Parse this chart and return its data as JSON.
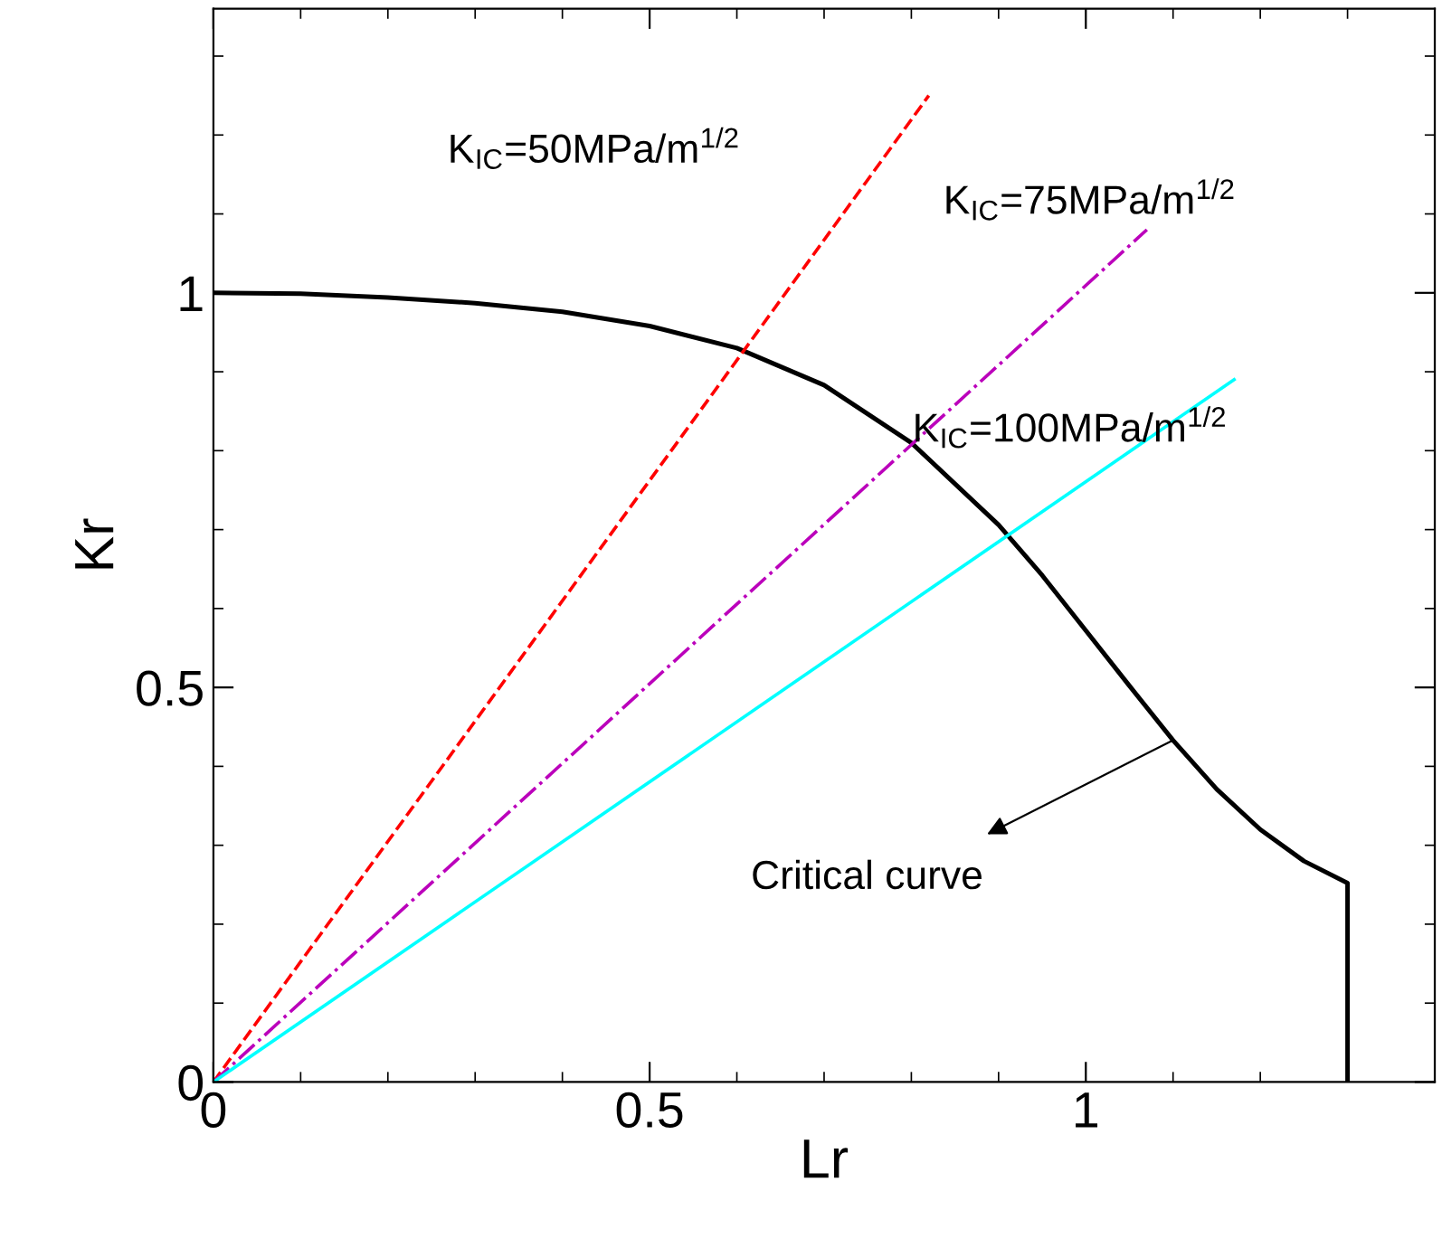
{
  "chart_data": {
    "type": "line",
    "xlabel": "Lr",
    "ylabel": "Kr",
    "xlim": [
      0,
      1.4
    ],
    "ylim": [
      0,
      1.36
    ],
    "xticks": [
      0,
      0.5,
      1
    ],
    "yticks": [
      0,
      0.5,
      1
    ],
    "grid": false,
    "legend": false,
    "marker": "none",
    "series": [
      {
        "color": "#000000",
        "line_style": "solid",
        "x": [
          0,
          0.1,
          0.2,
          0.3,
          0.4,
          0.5,
          0.6,
          0.7,
          0.8,
          0.9,
          0.95,
          1.0,
          1.05,
          1.1,
          1.15,
          1.2,
          1.25,
          1.3,
          1.3
        ],
        "values": [
          1.0,
          0.999,
          0.994,
          0.987,
          0.976,
          0.958,
          0.93,
          0.883,
          0.81,
          0.706,
          0.642,
          0.572,
          0.502,
          0.433,
          0.371,
          0.32,
          0.28,
          0.252,
          0
        ]
      },
      {
        "color": "#ff0000",
        "line_style": "dashed",
        "x": [
          0,
          0.82
        ],
        "values": [
          0,
          1.25
        ]
      },
      {
        "color": "#bb00bb",
        "line_style": "dashdot",
        "x": [
          0,
          1.07
        ],
        "values": [
          0,
          1.08
        ]
      },
      {
        "color": "#00ffff",
        "line_style": "solid",
        "x": [
          0,
          1.17
        ],
        "values": [
          0,
          0.89
        ]
      }
    ],
    "annotations": [
      "K$_{IC}$=50MPa/m$^{1/2}$",
      "K$_{IC}$=75MPa/m$^{1/2}$",
      "K$_{IC}$=100MPa/m$^{1/2}$",
      "Critical curve"
    ]
  }
}
